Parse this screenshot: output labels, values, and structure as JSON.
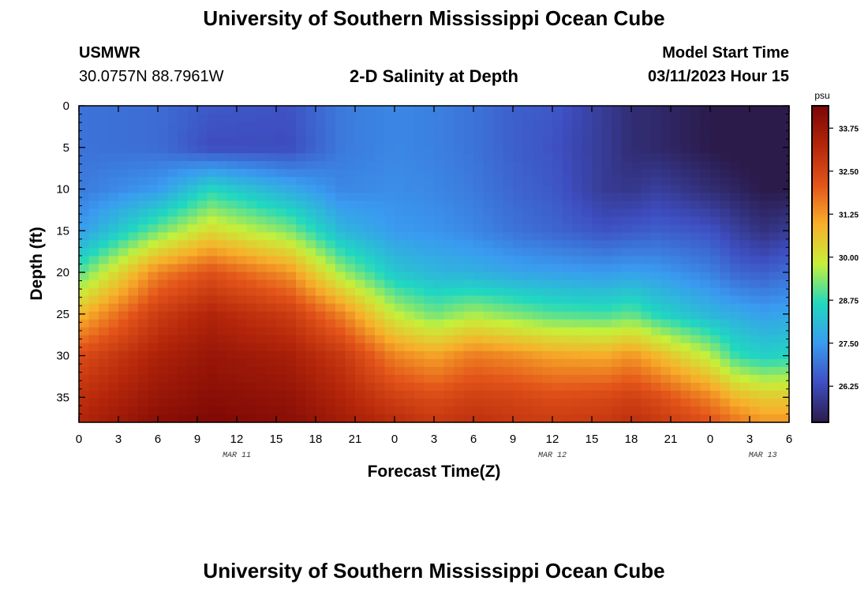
{
  "header": {
    "title": "University of Southern Mississippi Ocean Cube",
    "station_id": "USMWR",
    "station_coords": "30.0757N  88.7961W",
    "chart_title": "2-D Salinity at Depth",
    "model_start_label": "Model Start Time",
    "model_start_value": "03/11/2023 Hour 15"
  },
  "footer": {
    "title": "University of Southern Mississippi Ocean Cube"
  },
  "colors": {
    "colormap": [
      "#2b1b4b",
      "#3e4fc2",
      "#3a9bf0",
      "#20d8c0",
      "#c6f03a",
      "#f7b02a",
      "#e3541a",
      "#b4260a",
      "#7a0605"
    ]
  },
  "chart_data": {
    "type": "heatmap",
    "xlabel": "Forecast Time(Z)",
    "ylabel": "Depth (ft)",
    "xlim": [
      0,
      54
    ],
    "ylim": [
      38,
      0
    ],
    "x_ticks": [
      0,
      3,
      6,
      9,
      12,
      15,
      18,
      21,
      24,
      27,
      30,
      33,
      36,
      39,
      42,
      45,
      48,
      51,
      54
    ],
    "x_tick_labels": [
      "0",
      "3",
      "6",
      "9",
      "12",
      "15",
      "18",
      "21",
      "0",
      "3",
      "6",
      "9",
      "12",
      "15",
      "18",
      "21",
      "0",
      "3",
      "6"
    ],
    "y_ticks": [
      0,
      5,
      10,
      15,
      20,
      25,
      30,
      35
    ],
    "y_tick_labels": [
      "0",
      "5",
      "10",
      "15",
      "20",
      "25",
      "30",
      "35"
    ],
    "date_labels": [
      {
        "label": "MAR 11",
        "hour": 12
      },
      {
        "label": "MAR 12",
        "hour": 36
      },
      {
        "label": "MAR 13",
        "hour": 52
      }
    ],
    "colorbar": {
      "unit": "psu",
      "range": [
        25.2,
        34.4
      ],
      "ticks": [
        26.25,
        27.5,
        28.75,
        30.0,
        31.25,
        32.5,
        33.75
      ],
      "tick_labels": [
        "26.25",
        "27.50",
        "28.75",
        "30.00",
        "31.25",
        "32.50",
        "33.75"
      ]
    },
    "depths": [
      0,
      5,
      10,
      15,
      20,
      25,
      30,
      35,
      38
    ],
    "times": [
      0,
      6,
      10,
      16,
      20,
      24,
      27,
      30,
      33,
      36,
      40,
      42,
      44,
      48,
      50,
      52,
      54
    ],
    "salinity": [
      [
        26.9,
        26.8,
        26.5,
        26.4,
        27.0,
        27.2,
        27.1,
        26.9,
        26.6,
        26.5,
        25.9,
        25.6,
        25.5,
        25.2,
        25.1,
        25.1,
        25.1
      ],
      [
        26.9,
        26.8,
        26.3,
        26.3,
        27.0,
        27.2,
        27.1,
        26.9,
        26.6,
        26.4,
        25.9,
        25.6,
        25.5,
        25.2,
        25.1,
        25.1,
        25.1
      ],
      [
        27.0,
        27.5,
        28.6,
        27.8,
        27.2,
        27.3,
        27.2,
        27.0,
        26.7,
        26.5,
        25.9,
        25.8,
        26.0,
        25.6,
        25.4,
        25.2,
        25.2
      ],
      [
        27.5,
        29.2,
        30.2,
        29.3,
        28.0,
        27.5,
        27.4,
        27.2,
        26.9,
        26.7,
        26.4,
        26.5,
        26.6,
        26.4,
        26.0,
        25.7,
        25.9
      ],
      [
        29.0,
        31.5,
        32.2,
        31.3,
        29.5,
        28.3,
        28.0,
        27.9,
        27.7,
        27.6,
        27.5,
        27.6,
        27.5,
        27.1,
        26.7,
        26.6,
        26.8
      ],
      [
        30.8,
        32.7,
        33.3,
        32.7,
        31.5,
        29.8,
        29.2,
        29.6,
        29.3,
        29.0,
        28.9,
        29.1,
        28.6,
        28.0,
        27.8,
        27.6,
        27.7
      ],
      [
        32.3,
        33.4,
        33.8,
        33.5,
        32.8,
        31.5,
        31.1,
        31.6,
        31.4,
        31.1,
        31.0,
        31.3,
        30.8,
        29.7,
        28.8,
        28.5,
        28.6
      ],
      [
        33.0,
        33.8,
        34.1,
        33.9,
        33.3,
        32.6,
        32.3,
        32.6,
        32.5,
        32.3,
        32.4,
        32.6,
        32.3,
        31.5,
        30.8,
        30.5,
        30.5
      ],
      [
        33.3,
        34.1,
        34.3,
        34.1,
        33.6,
        33.1,
        32.8,
        33.0,
        32.8,
        32.7,
        32.8,
        33.0,
        32.8,
        32.2,
        31.7,
        31.3,
        31.3
      ]
    ]
  }
}
